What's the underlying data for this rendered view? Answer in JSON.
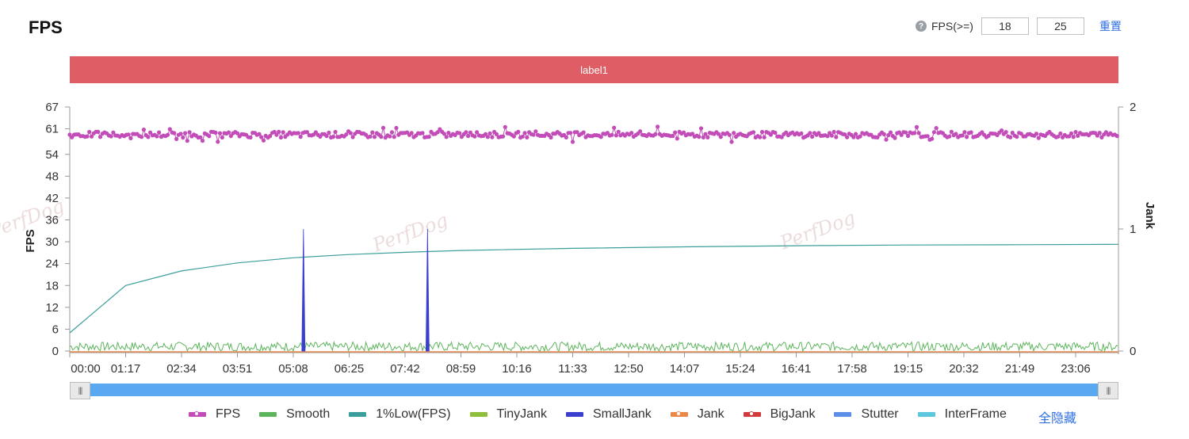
{
  "page_title": "FPS",
  "controls": {
    "help_icon": "question-circle-icon",
    "threshold_label": "FPS(>=)",
    "threshold_low": "18",
    "threshold_high": "25",
    "reset_label": "重置"
  },
  "label_band": "label1",
  "watermark": "PerfDog",
  "legend_hide_all": "全隐藏",
  "colors": {
    "fps": "#c24cb8",
    "smooth": "#5cb55c",
    "low1": "#3a9e9a",
    "tinyjank": "#8fbf3a",
    "smalljank": "#3b3fd0",
    "jank": "#e8894a",
    "bigjank": "#d13b3b",
    "stutter": "#5b8fe8",
    "interframe": "#5cc7dd",
    "band": "#df5e66",
    "slider": "#5aa9f0"
  },
  "chart_data": {
    "type": "line",
    "title": "FPS",
    "ylabel": "FPS",
    "y2label": "Jank",
    "ylim": [
      0,
      67
    ],
    "y2lim": [
      0,
      2
    ],
    "y_ticks": [
      "0",
      "6",
      "12",
      "18",
      "24",
      "30",
      "36",
      "42",
      "48",
      "54",
      "61",
      "67"
    ],
    "y2_ticks": [
      "0",
      "1",
      "2"
    ],
    "x_ticks": [
      "00:00",
      "01:17",
      "02:34",
      "03:51",
      "05:08",
      "06:25",
      "07:42",
      "08:59",
      "10:16",
      "11:33",
      "12:50",
      "14:07",
      "15:24",
      "16:41",
      "17:58",
      "19:15",
      "20:32",
      "21:49",
      "23:06"
    ],
    "x_range_seconds": [
      0,
      1445
    ],
    "series": [
      {
        "name": "FPS",
        "axis": "left",
        "style": "dots",
        "mean": 59.4,
        "range": [
          58,
          61
        ]
      },
      {
        "name": "Smooth",
        "axis": "left",
        "style": "noise",
        "range": [
          0,
          2.5
        ]
      },
      {
        "name": "1%Low(FPS)",
        "axis": "left",
        "points": [
          [
            0,
            5
          ],
          [
            77,
            18
          ],
          [
            154,
            22
          ],
          [
            231,
            24.2
          ],
          [
            308,
            25.6
          ],
          [
            385,
            26.5
          ],
          [
            462,
            27.1
          ],
          [
            539,
            27.6
          ],
          [
            693,
            28.2
          ],
          [
            847,
            28.6
          ],
          [
            1001,
            28.9
          ],
          [
            1155,
            29.1
          ],
          [
            1309,
            29.2
          ],
          [
            1445,
            29.3
          ]
        ]
      },
      {
        "name": "TinyJank",
        "axis": "right",
        "points": []
      },
      {
        "name": "SmallJank",
        "axis": "right",
        "style": "spikes",
        "spikes": [
          [
            322,
            1
          ],
          [
            493,
            1
          ]
        ]
      },
      {
        "name": "Jank",
        "axis": "right",
        "points": [
          [
            0,
            0
          ],
          [
            1445,
            0
          ]
        ]
      },
      {
        "name": "BigJank",
        "axis": "right",
        "points": []
      },
      {
        "name": "Stutter",
        "axis": "right",
        "points": []
      },
      {
        "name": "InterFrame",
        "axis": "right",
        "points": []
      }
    ]
  }
}
